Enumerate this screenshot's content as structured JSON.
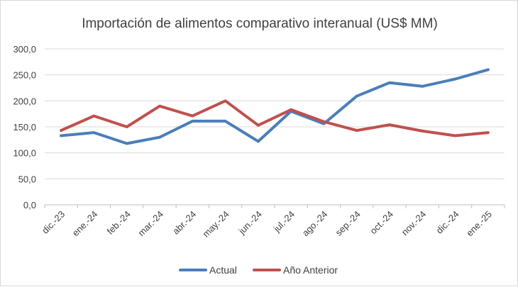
{
  "chart_data": {
    "type": "line",
    "title": "Importación de alimentos comparativo interanual (US$ MM)",
    "xlabel": "",
    "ylabel": "",
    "categories": [
      "dic.-23",
      "ene.-24",
      "feb.-24",
      "mar.-24",
      "abr.-24",
      "may.-24",
      "jun.-24",
      "jul.-24",
      "ago.-24",
      "sep.-24",
      "oct.-24",
      "nov.-24",
      "dic.-24",
      "ene.-25"
    ],
    "series": [
      {
        "name": "Actual",
        "color": "#4a7eba",
        "values": [
          133,
          139,
          118,
          130,
          161,
          161,
          122,
          180,
          156,
          209,
          235,
          228,
          242,
          260
        ]
      },
      {
        "name": "Año Anterior",
        "color": "#c0504d",
        "values": [
          143,
          171,
          150,
          190,
          171,
          200,
          153,
          183,
          160,
          143,
          154,
          142,
          133,
          139
        ]
      }
    ],
    "ylim": [
      0,
      300
    ],
    "yticks": [
      "0,0",
      "50,0",
      "100,0",
      "150,0",
      "200,0",
      "250,0",
      "300,0"
    ],
    "grid": true,
    "legend_position": "bottom"
  }
}
